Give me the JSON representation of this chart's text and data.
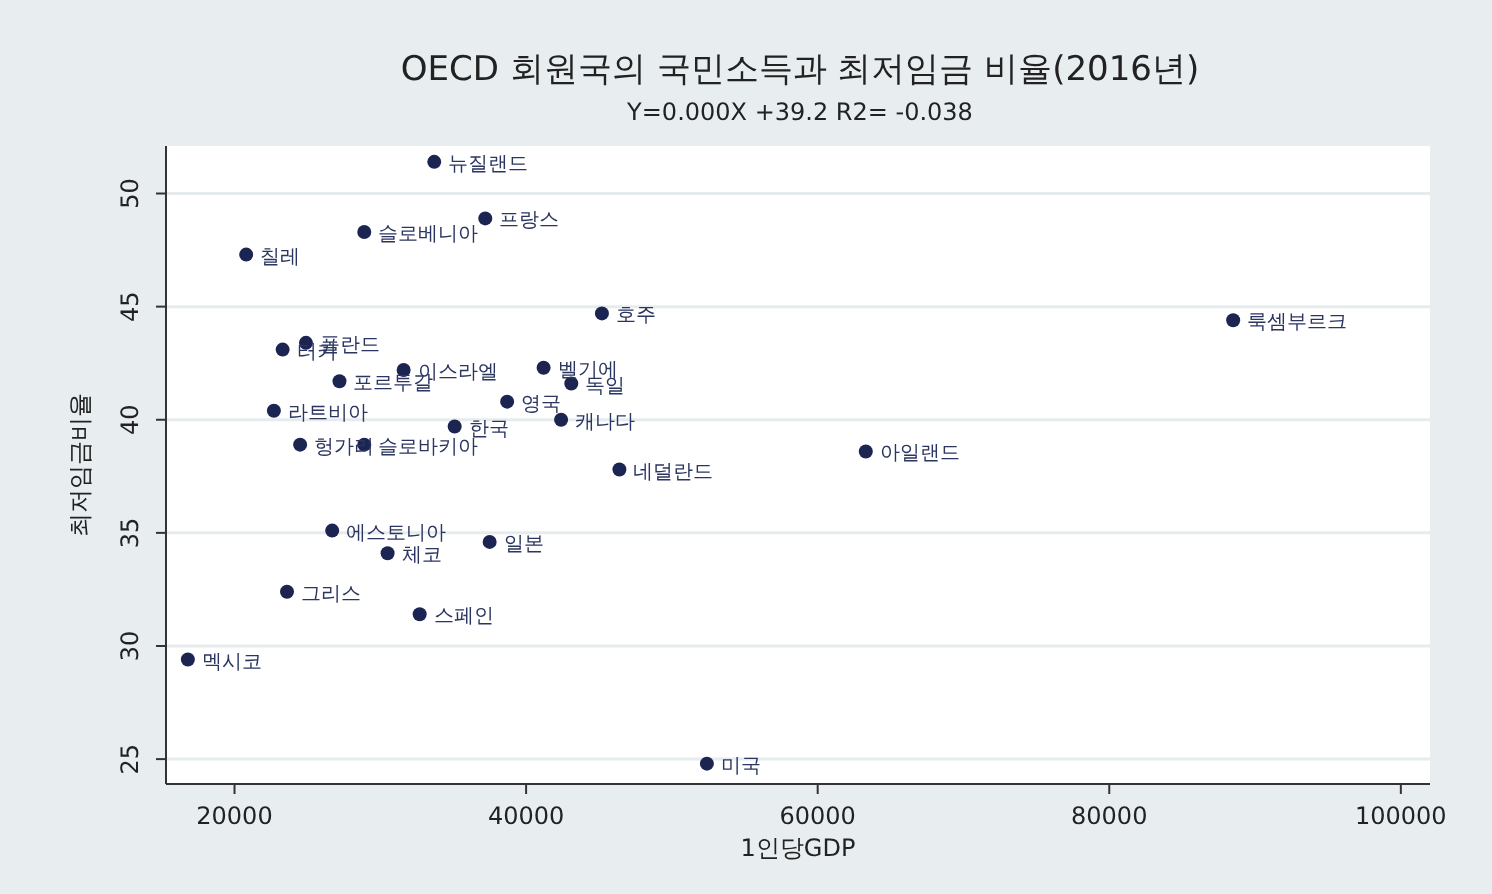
{
  "chart_data": {
    "type": "scatter",
    "title": "OECD 회원국의 국민소득과 최저임금 비율(2016년)",
    "subtitle": "Y=0.000X +39.2 R2= -0.038",
    "xlabel": "1인당GDP",
    "ylabel": "최저임금비율",
    "x": [
      33700,
      37200,
      28900,
      20800,
      45200,
      88500,
      23300,
      24900,
      27200,
      31600,
      41200,
      43100,
      38700,
      42400,
      35100,
      22700,
      24500,
      28900,
      46400,
      63300,
      26700,
      30500,
      37500,
      23600,
      32700,
      16800,
      52400
    ],
    "series": [
      {
        "color": "#1c2452",
        "values": [
          51.4,
          48.9,
          48.3,
          47.3,
          44.7,
          44.4,
          43.1,
          43.4,
          41.7,
          42.2,
          42.3,
          41.6,
          40.8,
          40.0,
          39.7,
          40.4,
          38.9,
          38.9,
          37.8,
          38.6,
          35.1,
          34.1,
          34.6,
          32.4,
          31.4,
          29.4,
          24.8
        ]
      }
    ],
    "annotations": [
      {
        "text": "뉴질랜드",
        "x": 33700,
        "y": 51.4
      },
      {
        "text": "프랑스",
        "x": 37200,
        "y": 48.9
      },
      {
        "text": "슬로베니아",
        "x": 28900,
        "y": 48.3
      },
      {
        "text": "칠레",
        "x": 20800,
        "y": 47.3
      },
      {
        "text": "호주",
        "x": 45200,
        "y": 44.7
      },
      {
        "text": "룩셈부르크",
        "x": 88500,
        "y": 44.4
      },
      {
        "text": "터키",
        "x": 23300,
        "y": 43.1
      },
      {
        "text": "폴란드",
        "x": 24900,
        "y": 43.4
      },
      {
        "text": "포르투갈",
        "x": 27200,
        "y": 41.7
      },
      {
        "text": "이스라엘",
        "x": 31600,
        "y": 42.2
      },
      {
        "text": "벨기에",
        "x": 41200,
        "y": 42.3
      },
      {
        "text": "독일",
        "x": 43100,
        "y": 41.6
      },
      {
        "text": "영국",
        "x": 38700,
        "y": 40.8
      },
      {
        "text": "캐나다",
        "x": 42400,
        "y": 40.0
      },
      {
        "text": "한국",
        "x": 35100,
        "y": 39.7
      },
      {
        "text": "라트비아",
        "x": 22700,
        "y": 40.4
      },
      {
        "text": "헝가리",
        "x": 24500,
        "y": 38.9
      },
      {
        "text": "슬로바키아",
        "x": 28900,
        "y": 38.9
      },
      {
        "text": "네덜란드",
        "x": 46400,
        "y": 37.8
      },
      {
        "text": "아일랜드",
        "x": 63300,
        "y": 38.6
      },
      {
        "text": "에스토니아",
        "x": 26700,
        "y": 35.1
      },
      {
        "text": "체코",
        "x": 30500,
        "y": 34.1
      },
      {
        "text": "일본",
        "x": 37500,
        "y": 34.6
      },
      {
        "text": "그리스",
        "x": 23600,
        "y": 32.4
      },
      {
        "text": "스페인",
        "x": 32700,
        "y": 31.4
      },
      {
        "text": "멕시코",
        "x": 16800,
        "y": 29.4
      },
      {
        "text": "미국",
        "x": 52400,
        "y": 24.8
      }
    ],
    "xlim": [
      15300,
      102000
    ],
    "xticks": [
      20000,
      40000,
      60000,
      80000,
      100000
    ],
    "ylim": [
      23.9,
      52.1
    ],
    "yticks": [
      25,
      30,
      35,
      40,
      45,
      50
    ],
    "grid": "y",
    "marker": "circle"
  }
}
